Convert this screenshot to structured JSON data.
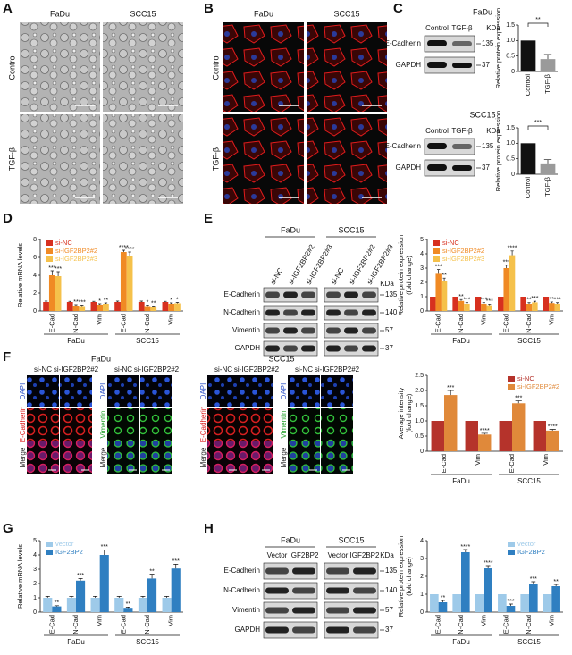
{
  "panels": {
    "letters": [
      "A",
      "B",
      "C",
      "D",
      "E",
      "F",
      "G",
      "H"
    ],
    "a": {
      "columns": [
        "FaDu",
        "SCC15"
      ],
      "rows": [
        "Control",
        "TGF-β"
      ]
    },
    "b": {
      "columns": [
        "FaDu",
        "SCC15"
      ],
      "rows": [
        "Control",
        "TGF-β"
      ]
    },
    "c": [
      {
        "title": "FaDu",
        "lanes": [
          "Control",
          "TGF-β"
        ],
        "unit": "KDa",
        "rows": [
          {
            "label": "E-Cadherin",
            "mw": "135"
          },
          {
            "label": "GAPDH",
            "mw": "37"
          }
        ]
      },
      {
        "title": "SCC15",
        "lanes": [
          "Control",
          "TGF-β"
        ],
        "unit": "KDa",
        "rows": [
          {
            "label": "E-Cadherin",
            "mw": "135"
          },
          {
            "label": "GAPDH",
            "mw": "37"
          }
        ]
      }
    ],
    "e": {
      "groups": [
        "FaDu",
        "SCC15"
      ],
      "lanes": [
        "si-NC",
        "si-IGF2BP2#2",
        "si-IGF2BP2#3"
      ],
      "unit": "KDa",
      "rows": [
        {
          "label": "E-Cadherin",
          "mw": "135"
        },
        {
          "label": "N-Cadherin",
          "mw": "140"
        },
        {
          "label": "Vimentin",
          "mw": "57"
        },
        {
          "label": "GAPDH",
          "mw": "37"
        }
      ]
    },
    "f": [
      {
        "title": "FaDu",
        "lanes": [
          "si-NC",
          "si-IGF2BP2#2"
        ],
        "stains": [
          [
            "DAPI",
            "E-Cadherin",
            "Merge"
          ],
          [
            "DAPI",
            "Vimentin",
            "Merge"
          ]
        ]
      },
      {
        "title": "SCC15",
        "lanes": [
          "si-NC",
          "si-IGF2BP2#2"
        ],
        "stains": [
          [
            "DAPI",
            "E-Cadherin",
            "Merge"
          ],
          [
            "DAPI",
            "Vimentin",
            "Merge"
          ]
        ]
      }
    ],
    "h": {
      "groups": [
        "FaDu",
        "SCC15"
      ],
      "lanes": [
        "Vector",
        "IGF2BP2"
      ],
      "unit": "KDa",
      "rows": [
        {
          "label": "E-Cadherin",
          "mw": "135"
        },
        {
          "label": "N-Cadherin",
          "mw": "140"
        },
        {
          "label": "Vimentin",
          "mw": "57"
        },
        {
          "label": "GAPDH",
          "mw": "37"
        }
      ]
    }
  },
  "chart_data": [
    {
      "type": "bar",
      "y_label": [
        "Relative protein expression"
      ],
      "categories": [
        "Control",
        "TGF-β"
      ],
      "series": [
        {
          "colors": [
            "#111111",
            "#9a9a9a"
          ],
          "values": [
            1,
            0.4
          ],
          "errors": [
            null,
            0.15
          ]
        }
      ],
      "ylim": [
        0,
        1.5
      ],
      "yticks": [
        0,
        0.5,
        {
          "value": 1,
          "label": "1.0"
        },
        1.5
      ],
      "annotation": "**"
    },
    {
      "type": "bar",
      "y_label": [
        "Relative protein expression"
      ],
      "categories": [
        "Control",
        "TGF-β"
      ],
      "series": [
        {
          "colors": [
            "#111111",
            "#9a9a9a"
          ],
          "values": [
            1,
            0.35
          ],
          "errors": [
            null,
            0.12
          ]
        }
      ],
      "ylim": [
        0,
        1.5
      ],
      "yticks": [
        0,
        0.5,
        {
          "value": 1,
          "label": "1.0"
        },
        1.5
      ],
      "annotation": "***"
    },
    {
      "type": "bar",
      "y_label": [
        "Relative mRNA levels"
      ],
      "categories": [
        "E-Cad",
        "N-Cad",
        "Vim",
        "E-Cad",
        "N-Cad",
        "Vim"
      ],
      "groups": [
        "FaDu",
        "SCC15"
      ],
      "legend": "upper left",
      "ylim": [
        0,
        8
      ],
      "yticks": [
        0,
        2,
        4,
        6,
        8
      ],
      "series": [
        {
          "name": "si-NC",
          "color": "#d7301f",
          "values": [
            1,
            1,
            1,
            1,
            1,
            1
          ],
          "errors": [
            0.1,
            0.08,
            0.08,
            0.1,
            0.1,
            0.08
          ]
        },
        {
          "name": "si-IGF2BP2#2",
          "color": "#f08a24",
          "values": [
            4.0,
            0.6,
            0.7,
            6.6,
            0.55,
            0.8
          ],
          "errors": [
            0.5,
            0.1,
            0.1,
            0.2,
            0.1,
            0.1
          ],
          "labels": [
            "***",
            "**",
            "*",
            "****",
            "*",
            "*"
          ]
        },
        {
          "name": "si-IGF2BP2#3",
          "color": "#f5c14b",
          "values": [
            3.9,
            0.55,
            0.8,
            6.2,
            0.45,
            0.85
          ],
          "errors": [
            0.5,
            0.1,
            0.1,
            0.4,
            0.1,
            0.1
          ],
          "labels": [
            "***",
            "***",
            "**",
            "****",
            "**",
            "*"
          ]
        }
      ]
    },
    {
      "type": "bar",
      "y_label": [
        "Relative protein expression",
        "(fold change)"
      ],
      "categories": [
        "E-Cad",
        "N-Cad",
        "Vim",
        "E-Cad",
        "N-Cad",
        "Vim"
      ],
      "groups": [
        "FaDu",
        "SCC15"
      ],
      "legend": "upper left",
      "ylim": [
        0,
        5
      ],
      "yticks": [
        0,
        1,
        2,
        3,
        4,
        5
      ],
      "series": [
        {
          "name": "si-NC",
          "color": "#d7301f",
          "values": [
            1,
            1,
            1,
            1,
            1,
            1
          ]
        },
        {
          "name": "si-IGF2BP2#2",
          "color": "#f08a24",
          "values": [
            2.6,
            0.7,
            0.5,
            3.0,
            0.5,
            0.55
          ],
          "errors": [
            0.3,
            0.1,
            0.08,
            0.2,
            0.08,
            0.08
          ],
          "labels": [
            "***",
            "**",
            "***",
            "***",
            "**",
            "**"
          ]
        },
        {
          "name": "si-IGF2BP2#3",
          "color": "#f5c14b",
          "values": [
            2.1,
            0.5,
            0.4,
            3.9,
            0.6,
            0.5
          ],
          "errors": [
            0.2,
            0.08,
            0.08,
            0.3,
            0.08,
            0.08
          ],
          "labels": [
            "**",
            "***",
            "***",
            "****",
            "***",
            "***"
          ]
        }
      ]
    },
    {
      "type": "bar",
      "y_label": [
        "Average intensity",
        "(fold change)"
      ],
      "categories": [
        "E-Cad",
        "Vim",
        "E-Cad",
        "Vim"
      ],
      "groups": [
        "FaDu",
        "SCC15"
      ],
      "legend": "upper right",
      "ylim": [
        0,
        2.5
      ],
      "yticks": [
        0,
        0.5,
        {
          "value": 1,
          "label": "1.0"
        },
        1.5,
        {
          "value": 2,
          "label": "2.0"
        },
        2.5
      ],
      "series": [
        {
          "name": "si-NC",
          "color": "#b5332b",
          "values": [
            1,
            1,
            1,
            1
          ]
        },
        {
          "name": "si-IGF2BP2#2",
          "color": "#e0893a",
          "values": [
            1.85,
            0.55,
            1.58,
            0.68
          ],
          "errors": [
            0.15,
            0.04,
            0.08,
            0.04
          ],
          "labels": [
            "***",
            "****",
            "***",
            "****"
          ]
        }
      ]
    },
    {
      "type": "bar",
      "y_label": [
        "Relative mRNA levels"
      ],
      "categories": [
        "E-Cad",
        "N-Cad",
        "Vim",
        "E-Cad",
        "N-Cad",
        "Vim"
      ],
      "groups": [
        "FaDu",
        "SCC15"
      ],
      "legend": "upper left",
      "ylim": [
        0,
        5
      ],
      "yticks": [
        0,
        1,
        2,
        3,
        4,
        5
      ],
      "series": [
        {
          "name": "vector",
          "color": "#9ecae9",
          "values": [
            1,
            1,
            1,
            1,
            1,
            1
          ],
          "errors": [
            0.1,
            0.1,
            0.1,
            0.1,
            0.1,
            0.1
          ]
        },
        {
          "name": "IGF2BP2",
          "color": "#2f7fc1",
          "values": [
            0.4,
            2.2,
            4.0,
            0.3,
            2.35,
            3.05
          ],
          "errors": [
            0.05,
            0.15,
            0.35,
            0.05,
            0.3,
            0.3
          ],
          "labels": [
            "**",
            "***",
            "***",
            "**",
            "**",
            "***"
          ]
        }
      ]
    },
    {
      "type": "bar",
      "y_label": [
        "Relative protein expression",
        "(fold change)"
      ],
      "categories": [
        "E-Cad",
        "N-Cad",
        "Vim",
        "E-Cad",
        "N-Cad",
        "Vim"
      ],
      "groups": [
        "FaDu",
        "SCC15"
      ],
      "legend": "upper right",
      "ylim": [
        0,
        4
      ],
      "yticks": [
        0,
        1,
        2,
        3,
        4
      ],
      "series": [
        {
          "name": "vector",
          "color": "#9ecae9",
          "values": [
            1,
            1,
            1,
            1,
            1,
            1
          ]
        },
        {
          "name": "IGF2BP2",
          "color": "#2f7fc1",
          "values": [
            0.55,
            3.35,
            2.45,
            0.35,
            1.6,
            1.45
          ],
          "errors": [
            0.1,
            0.15,
            0.15,
            0.1,
            0.1,
            0.1
          ],
          "labels": [
            "**",
            "****",
            "****",
            "***",
            "***",
            "**"
          ]
        }
      ]
    }
  ]
}
